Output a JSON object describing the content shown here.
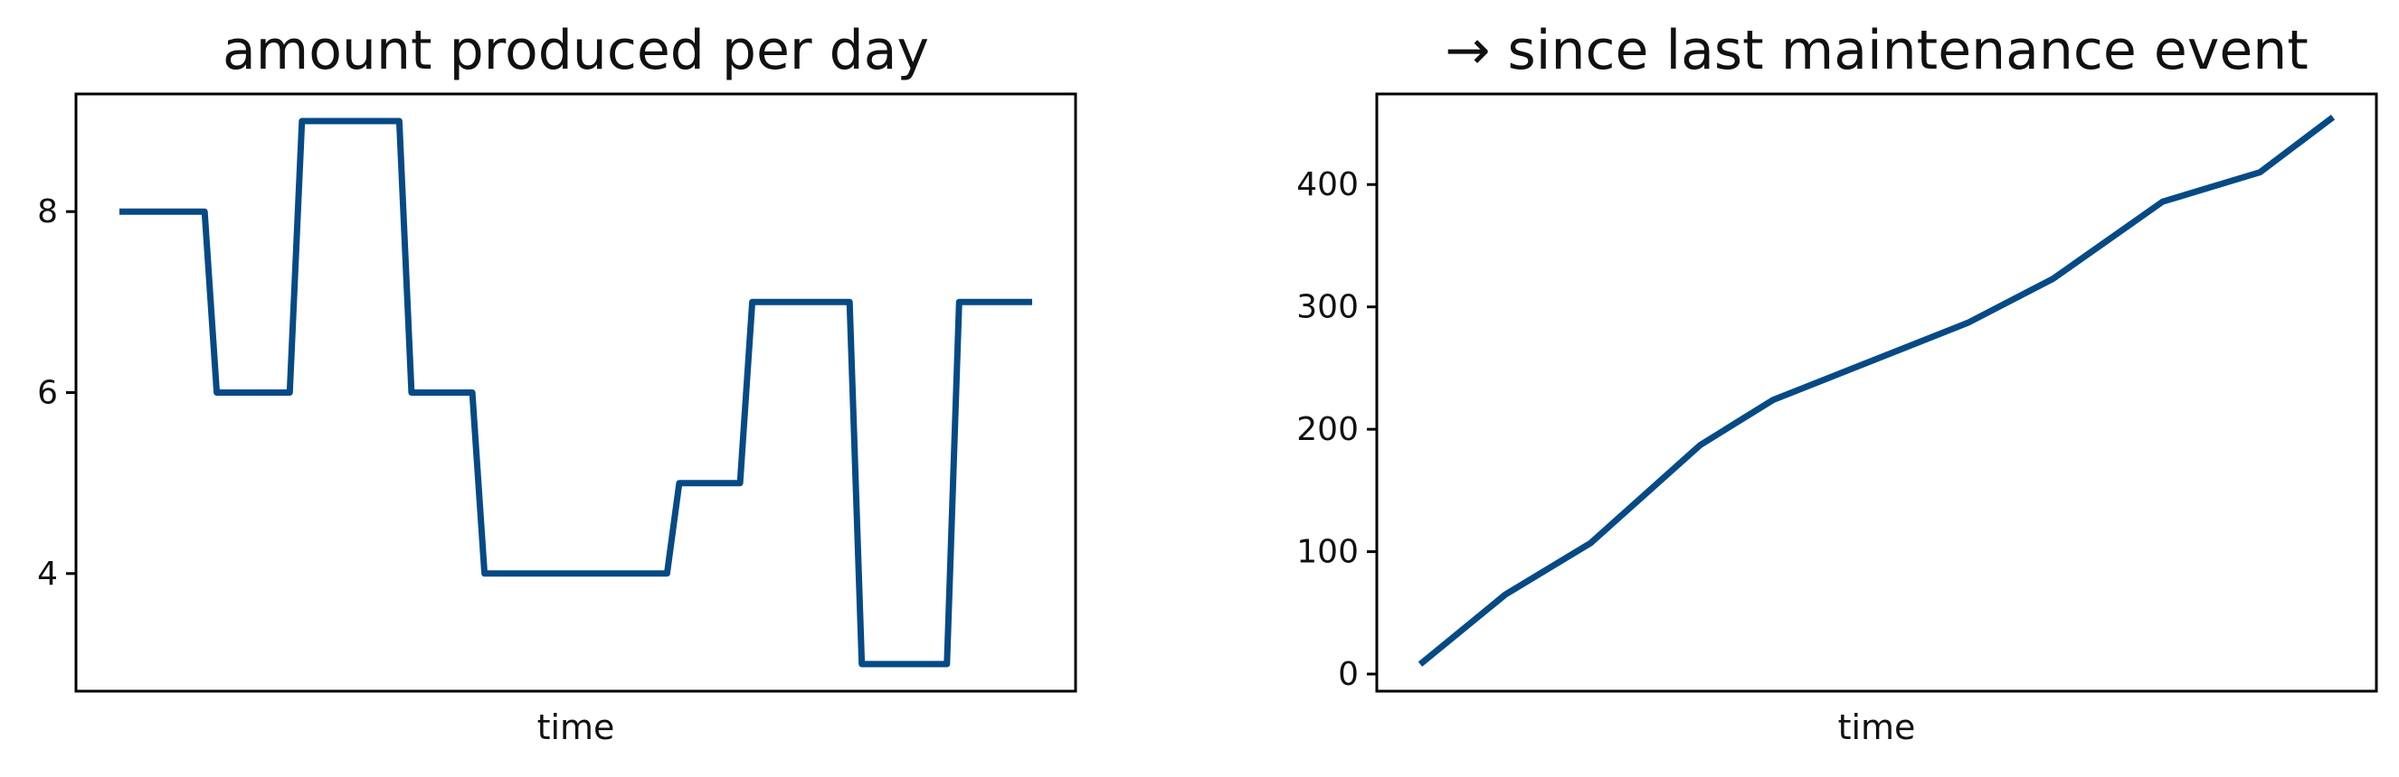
{
  "chart_data": [
    {
      "type": "line",
      "title": "amount produced per day",
      "xlabel": "time",
      "ylabel": "",
      "xlim": [
        0,
        16
      ],
      "ylim": [
        2.7,
        9.3
      ],
      "yticks": [
        4,
        6,
        8
      ],
      "ytick_labels": [
        "4",
        "6",
        "8"
      ],
      "grid": false,
      "legend": "none",
      "color": "#064a85",
      "series": [
        {
          "x": [
            0,
            1.4,
            1.6,
            2.8,
            3.0,
            4.6,
            4.8,
            5.8,
            6.0,
            9.0,
            9.2,
            10.2,
            10.4,
            12.0,
            12.2,
            13.6,
            13.8,
            15.0
          ],
          "values": [
            8,
            8,
            6,
            6,
            9,
            9,
            6,
            6,
            4,
            4,
            5,
            5,
            7,
            7,
            3,
            3,
            7,
            7
          ]
        }
      ]
    },
    {
      "type": "line",
      "title": "→ since last maintenance event",
      "xlabel": "time",
      "ylabel": "",
      "xlim": [
        0,
        16
      ],
      "ylim": [
        -14,
        474
      ],
      "yticks": [
        0,
        100,
        200,
        300,
        400
      ],
      "ytick_labels": [
        "0",
        "100",
        "200",
        "300",
        "400"
      ],
      "grid": false,
      "legend": "none",
      "color": "#064a85",
      "series": [
        {
          "x": [
            0,
            1.4,
            2.8,
            4.6,
            5.8,
            9.0,
            10.4,
            12.2,
            13.8,
            15.0
          ],
          "values": [
            8,
            65,
            107,
            187,
            224,
            287,
            323,
            386,
            410,
            455
          ]
        }
      ]
    }
  ]
}
